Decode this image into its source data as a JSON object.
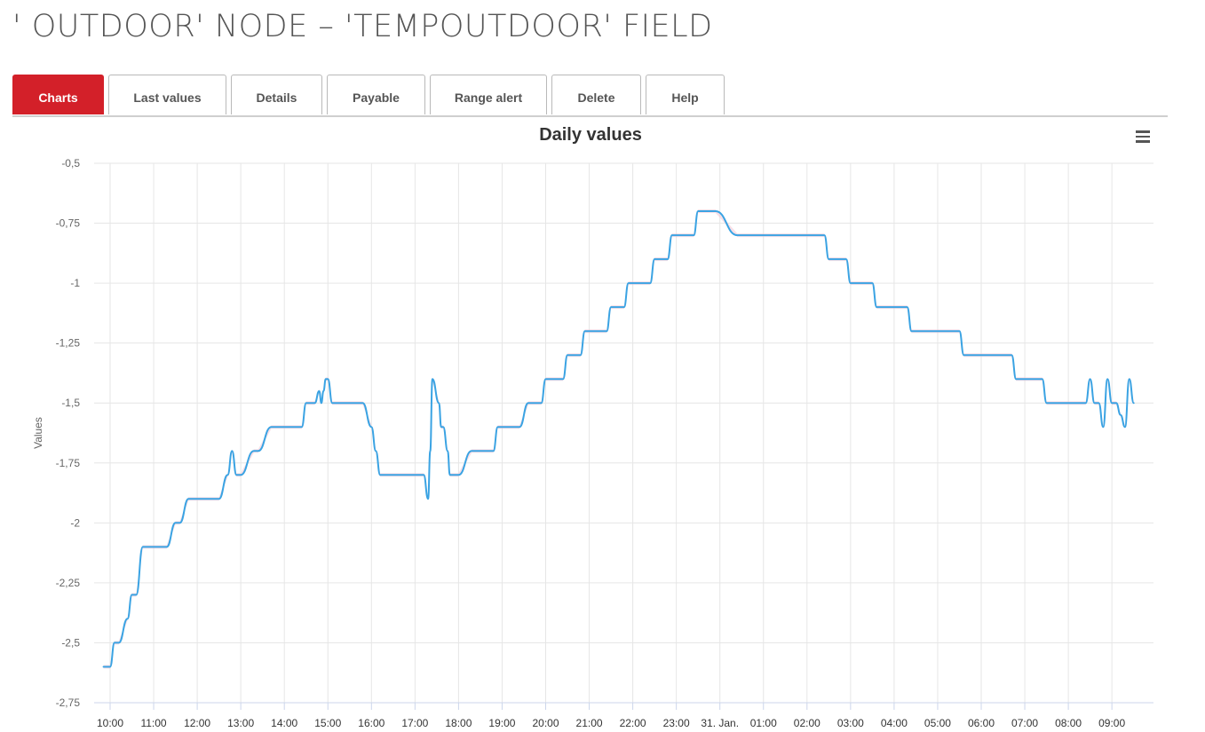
{
  "page": {
    "title": "' OUTDOOR' NODE – 'TEMPOUTDOOR' FIELD"
  },
  "tabs": [
    {
      "label": "Charts",
      "active": true
    },
    {
      "label": "Last values",
      "active": false
    },
    {
      "label": "Details",
      "active": false
    },
    {
      "label": "Payable",
      "active": false
    },
    {
      "label": "Range alert",
      "active": false
    },
    {
      "label": "Delete",
      "active": false
    },
    {
      "label": "Help",
      "active": false
    }
  ],
  "chart": {
    "menu_icon": "hamburger-menu-icon"
  },
  "colors": {
    "accent": "#d32029",
    "series": "#3aa3e3",
    "range": "#f2c4d3"
  },
  "chart_data": {
    "type": "line",
    "title": "Daily values",
    "ylabel": "Values",
    "ylim": [
      -2.75,
      -0.5
    ],
    "y_ticks": [
      -0.5,
      -0.75,
      -1,
      -1.25,
      -1.5,
      -1.75,
      -2,
      -2.25,
      -2.5,
      -2.75
    ],
    "y_tick_labels": [
      "-0,5",
      "-0,75",
      "-1",
      "-1,25",
      "-1,5",
      "-1,75",
      "-2",
      "-2,25",
      "-2,5",
      "-2,75"
    ],
    "x_tick_labels": [
      "10:00",
      "11:00",
      "12:00",
      "13:00",
      "14:00",
      "15:00",
      "16:00",
      "17:00",
      "18:00",
      "19:00",
      "20:00",
      "21:00",
      "22:00",
      "23:00",
      "31. Jan.",
      "01:00",
      "02:00",
      "03:00",
      "04:00",
      "05:00",
      "06:00",
      "07:00",
      "08:00",
      "09:00"
    ],
    "x_unit": "hours after 10:00",
    "grid": true,
    "series": [
      {
        "x": [
          -0.15,
          0.0,
          0.1,
          0.2,
          0.4,
          0.5,
          0.6,
          0.75,
          0.85,
          0.9,
          1.0,
          1.3,
          1.5,
          1.6,
          1.8,
          2.5,
          2.7,
          2.8,
          2.9,
          3.0,
          3.3,
          3.4,
          3.7,
          3.8,
          4.4,
          4.5,
          4.7,
          4.8,
          4.85,
          4.9,
          4.95,
          5.0,
          5.1,
          5.2,
          5.3,
          5.4,
          5.5,
          5.6,
          5.7,
          5.8,
          6.0,
          6.1,
          6.2,
          6.3,
          6.5,
          7.2,
          7.3,
          7.35,
          7.4,
          7.55,
          7.6,
          7.65,
          7.75,
          7.8,
          7.9,
          8.0,
          8.3,
          8.4,
          8.8,
          8.9,
          9.4,
          9.6,
          9.9,
          10.0,
          10.4,
          10.5,
          10.8,
          10.9,
          11.4,
          11.5,
          11.8,
          11.9,
          12.4,
          12.5,
          12.8,
          12.9,
          13.4,
          13.5,
          13.8,
          13.9,
          14.4,
          14.6,
          15.0,
          15.2,
          16.4,
          16.5,
          16.9,
          17.0,
          17.5,
          17.6,
          18.3,
          18.4,
          19.5,
          19.6,
          20.7,
          20.8,
          21.4,
          21.5,
          22.2,
          22.4,
          22.5,
          22.6,
          22.7,
          22.8,
          22.9,
          23.0,
          23.1,
          23.2,
          23.3,
          23.4,
          23.5
        ],
        "y": [
          -2.6,
          -2.6,
          -2.5,
          -2.5,
          -2.4,
          -2.3,
          -2.3,
          -2.1,
          -2.1,
          -2.1,
          -2.1,
          -2.1,
          -2.0,
          -2.0,
          -1.9,
          -1.9,
          -1.8,
          -1.7,
          -1.8,
          -1.8,
          -1.7,
          -1.7,
          -1.6,
          -1.6,
          -1.6,
          -1.5,
          -1.5,
          -1.45,
          -1.5,
          -1.45,
          -1.4,
          -1.4,
          -1.5,
          -1.5,
          -1.5,
          -1.5,
          -1.5,
          -1.5,
          -1.5,
          -1.5,
          -1.6,
          -1.7,
          -1.8,
          -1.8,
          -1.8,
          -1.8,
          -1.9,
          -1.7,
          -1.4,
          -1.5,
          -1.6,
          -1.6,
          -1.7,
          -1.8,
          -1.8,
          -1.8,
          -1.7,
          -1.7,
          -1.7,
          -1.6,
          -1.6,
          -1.5,
          -1.5,
          -1.4,
          -1.4,
          -1.3,
          -1.3,
          -1.2,
          -1.2,
          -1.1,
          -1.1,
          -1.0,
          -1.0,
          -0.9,
          -0.9,
          -0.8,
          -0.8,
          -0.7,
          -0.7,
          -0.7,
          -0.8,
          -0.8,
          -0.8,
          -0.8,
          -0.8,
          -0.9,
          -0.9,
          -1.0,
          -1.0,
          -1.1,
          -1.1,
          -1.2,
          -1.2,
          -1.3,
          -1.3,
          -1.4,
          -1.4,
          -1.5,
          -1.5,
          -1.5,
          -1.4,
          -1.5,
          -1.5,
          -1.6,
          -1.4,
          -1.5,
          -1.5,
          -1.55,
          -1.6,
          -1.4,
          -1.5
        ]
      }
    ]
  }
}
